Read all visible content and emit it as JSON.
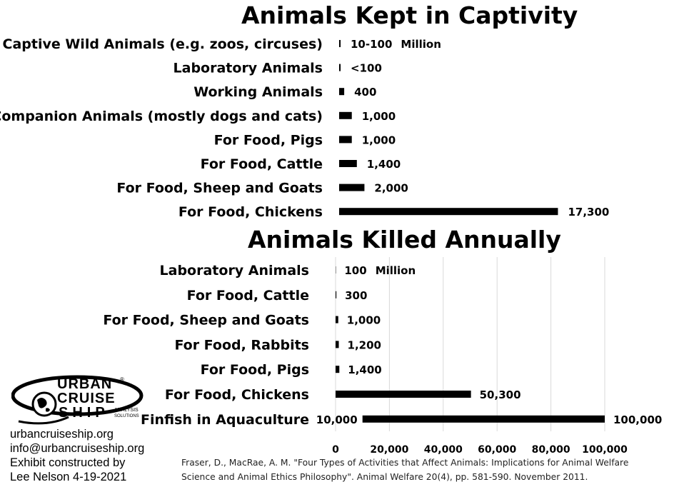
{
  "chart_data": [
    {
      "type": "bar",
      "orientation": "horizontal",
      "title": "Animals Kept in Captivity",
      "unit_label": "Million",
      "categories": [
        "Captive Wild Animals (e.g. zoos, circuses)",
        "Laboratory Animals",
        "Working Animals",
        "Companion Animals (mostly dogs and cats)",
        "For Food, Pigs",
        "For Food, Cattle",
        "For Food, Sheep and Goats",
        "For Food, Chickens"
      ],
      "values": [
        55,
        100,
        400,
        1000,
        1000,
        1400,
        2000,
        17300
      ],
      "data_labels": [
        "10-100",
        "<100",
        "400",
        "1,000",
        "1,000",
        "1,400",
        "2,000",
        "17,300"
      ],
      "xlim": [
        0,
        21000
      ],
      "grid": false
    },
    {
      "type": "bar",
      "orientation": "horizontal",
      "title": "Animals Killed Annually",
      "unit_label": "Million",
      "categories": [
        "Laboratory Animals",
        "For Food, Cattle",
        "For Food, Sheep and Goats",
        "For Food, Rabbits",
        "For Food, Pigs",
        "For Food, Chickens",
        "Finfish in Aquaculture"
      ],
      "values": [
        100,
        300,
        1000,
        1200,
        1400,
        50300,
        100000
      ],
      "range_start": [
        0,
        0,
        0,
        0,
        0,
        0,
        10000
      ],
      "data_labels": [
        "100",
        "300",
        "1,000",
        "1,200",
        "1,400",
        "50,300",
        "100,000"
      ],
      "range_start_label": "10,000",
      "xlim": [
        0,
        100000
      ],
      "x_ticks": [
        0,
        20000,
        40000,
        60000,
        80000,
        100000
      ],
      "x_tick_labels": [
        "0",
        "20,000",
        "40,000",
        "60,000",
        "80,000",
        "100,000"
      ],
      "grid": true
    }
  ],
  "branding": {
    "logo_line1": "URBAN",
    "logo_line2": "CRUISE",
    "logo_line3": "SHIP",
    "logo_tag1": "ANALYSIS",
    "logo_tag2": "SOLUTIONS",
    "logo_mark": "®"
  },
  "contact": {
    "website": "urbancruiseship.org",
    "email": "info@urbancruiseship.org",
    "credit_line1": "Exhibit constructed by",
    "credit_line2": "Lee Nelson 4-19-2021"
  },
  "citation": {
    "line1": "Fraser, D., MacRae, A. M. \"Four Types of Activities that Affect Animals: Implications for Animal Welfare",
    "line2": "Science and Animal Ethics Philosophy\". Animal Welfare 20(4), pp. 581-590. November 2011."
  },
  "colors": {
    "bar": "#000000",
    "grid": "#d9d9d9",
    "text": "#000000"
  }
}
